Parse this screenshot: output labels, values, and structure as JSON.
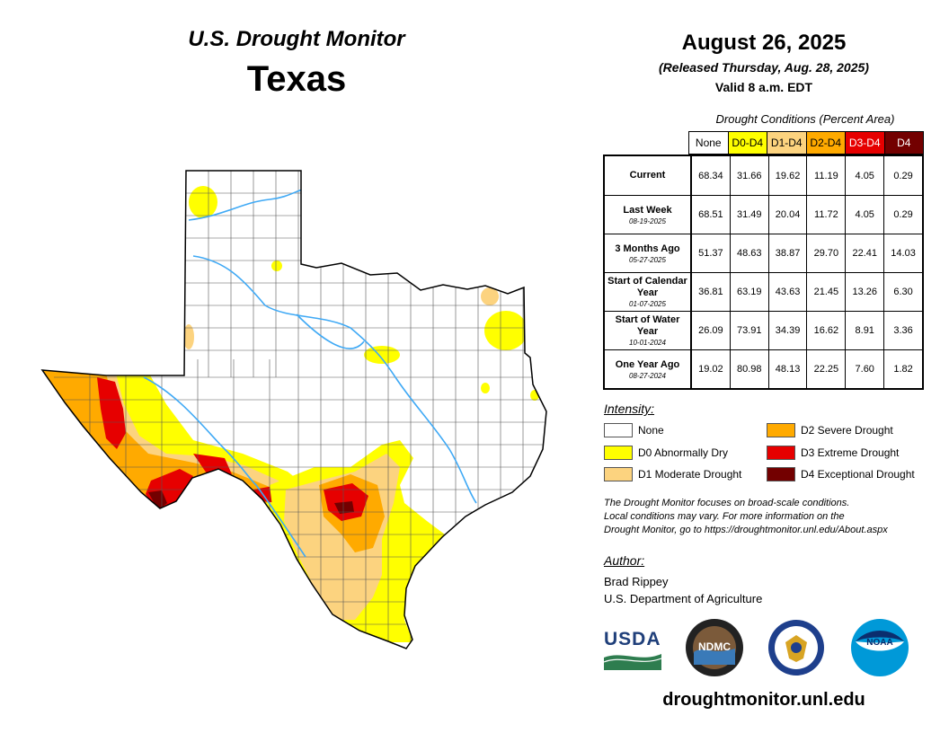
{
  "header": {
    "top": "U.S. Drought Monitor",
    "state": "Texas",
    "date": "August 26, 2025",
    "released": "(Released Thursday, Aug. 28, 2025)",
    "valid": "Valid 8 a.m. EDT"
  },
  "table": {
    "title": "Drought Conditions (Percent Area)",
    "columns": [
      {
        "label": "None",
        "bg": "#ffffff",
        "fg": "#000000"
      },
      {
        "label": "D0-D4",
        "bg": "#ffff00",
        "fg": "#000000"
      },
      {
        "label": "D1-D4",
        "bg": "#fcd37f",
        "fg": "#000000"
      },
      {
        "label": "D2-D4",
        "bg": "#ffaa00",
        "fg": "#000000"
      },
      {
        "label": "D3-D4",
        "bg": "#e60000",
        "fg": "#ffffff"
      },
      {
        "label": "D4",
        "bg": "#730000",
        "fg": "#ffffff"
      }
    ],
    "rows": [
      {
        "name": "Current",
        "date": "",
        "values": [
          "68.34",
          "31.66",
          "19.62",
          "11.19",
          "4.05",
          "0.29"
        ]
      },
      {
        "name": "Last Week",
        "date": "08-19-2025",
        "values": [
          "68.51",
          "31.49",
          "20.04",
          "11.72",
          "4.05",
          "0.29"
        ]
      },
      {
        "name": "3 Months Ago",
        "date": "05-27-2025",
        "values": [
          "51.37",
          "48.63",
          "38.87",
          "29.70",
          "22.41",
          "14.03"
        ]
      },
      {
        "name": "Start of Calendar Year",
        "date": "01-07-2025",
        "values": [
          "36.81",
          "63.19",
          "43.63",
          "21.45",
          "13.26",
          "6.30"
        ]
      },
      {
        "name": "Start of Water Year",
        "date": "10-01-2024",
        "values": [
          "26.09",
          "73.91",
          "34.39",
          "16.62",
          "8.91",
          "3.36"
        ]
      },
      {
        "name": "One Year Ago",
        "date": "08-27-2024",
        "values": [
          "19.02",
          "80.98",
          "48.13",
          "22.25",
          "7.60",
          "1.82"
        ]
      }
    ]
  },
  "legend": {
    "title": "Intensity:",
    "items": [
      {
        "label": "None",
        "color": "#ffffff"
      },
      {
        "label": "D0 Abnormally Dry",
        "color": "#ffff00"
      },
      {
        "label": "D1 Moderate Drought",
        "color": "#fcd37f"
      },
      {
        "label": "D2 Severe Drought",
        "color": "#ffaa00"
      },
      {
        "label": "D3 Extreme Drought",
        "color": "#e60000"
      },
      {
        "label": "D4 Exceptional Drought",
        "color": "#730000"
      }
    ]
  },
  "note": {
    "line1": "The Drought Monitor focuses on broad-scale conditions.",
    "line2": "Local conditions may vary. For more information on the",
    "line3": "Drought Monitor, go to https://droughtmonitor.unl.edu/About.aspx"
  },
  "author": {
    "heading": "Author:",
    "name": "Brad Rippey",
    "org": "U.S. Department of Agriculture"
  },
  "logos": {
    "usda": "USDA",
    "ndmc": "NDMC",
    "noaa": "NOAA"
  },
  "footer": {
    "url": "droughtmonitor.unl.edu"
  },
  "map": {
    "colors": {
      "none": "#ffffff",
      "d0": "#ffff00",
      "d1": "#fcd37f",
      "d2": "#ffaa00",
      "d3": "#e60000",
      "d4": "#730000",
      "water": "#3fa9f5",
      "border": "#000000"
    }
  }
}
